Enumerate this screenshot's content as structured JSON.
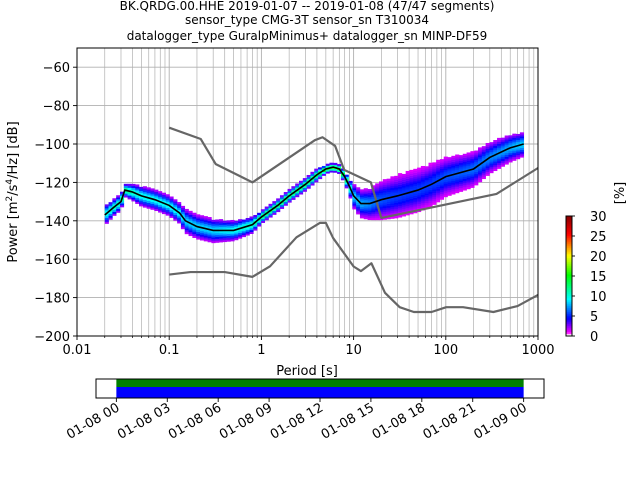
{
  "chart_data": {
    "type": "heatmap",
    "title_lines": [
      "BK.QRDG.00.HHE   2019-01-07 -- 2019-01-08  (47/47 segments)",
      "sensor_type CMG-3T sensor_sn T310034",
      "datalogger_type GuralpMinimus+ datalogger_sn MINP-DF59"
    ],
    "xlabel": "Period [s]",
    "ylabel_main": "Power [m",
    "ylabel_sup1": "2",
    "ylabel_mid": "/s",
    "ylabel_sup2": "4",
    "ylabel_end": "/Hz] [dB]",
    "x_scale": "log",
    "xlim": [
      0.01,
      1000
    ],
    "ylim": [
      -200,
      -50
    ],
    "x_ticks": [
      {
        "v": 0.01,
        "label": "0.01"
      },
      {
        "v": 0.1,
        "label": "0.1"
      },
      {
        "v": 1,
        "label": "1"
      },
      {
        "v": 10,
        "label": "10"
      },
      {
        "v": 100,
        "label": "100"
      },
      {
        "v": 1000,
        "label": "1000"
      }
    ],
    "y_ticks": [
      {
        "v": -60,
        "label": "−60"
      },
      {
        "v": -80,
        "label": "−80"
      },
      {
        "v": -100,
        "label": "−100"
      },
      {
        "v": -120,
        "label": "−120"
      },
      {
        "v": -140,
        "label": "−140"
      },
      {
        "v": -160,
        "label": "−160"
      },
      {
        "v": -180,
        "label": "−180"
      },
      {
        "v": -200,
        "label": "−200"
      }
    ],
    "grid": true,
    "colorbar": {
      "label": "[%]",
      "range": [
        0,
        30
      ],
      "ticks": [
        {
          "v": 0,
          "label": "0"
        },
        {
          "v": 5,
          "label": "5"
        },
        {
          "v": 10,
          "label": "10"
        },
        {
          "v": 15,
          "label": "15"
        },
        {
          "v": 20,
          "label": "20"
        },
        {
          "v": 25,
          "label": "25"
        },
        {
          "v": 30,
          "label": "30"
        }
      ]
    },
    "density": {
      "periods": [
        0.02,
        0.025,
        0.03,
        0.033,
        0.04,
        0.05,
        0.07,
        0.1,
        0.13,
        0.15,
        0.2,
        0.3,
        0.5,
        0.8,
        1,
        1.5,
        2,
        3,
        4,
        5,
        6,
        7,
        8,
        9,
        10,
        12,
        15,
        20,
        30,
        50,
        70,
        100,
        200,
        300,
        500,
        700
      ],
      "mode_db": [
        -137,
        -133,
        -130,
        -124,
        -125,
        -127,
        -129,
        -132,
        -136,
        -140,
        -143,
        -145,
        -145,
        -142,
        -138,
        -132,
        -127,
        -121,
        -116,
        -113,
        -112,
        -113,
        -117,
        -122,
        -127,
        -131,
        -131,
        -129,
        -127,
        -124,
        -121,
        -117,
        -113,
        -107,
        -102,
        -100
      ],
      "spread_db": [
        5,
        4,
        4,
        3,
        4,
        5,
        5,
        5,
        5,
        6,
        6,
        6,
        5,
        4,
        3,
        3,
        3,
        3,
        3,
        2,
        2,
        2,
        3,
        4,
        6,
        7,
        8,
        10,
        11,
        11,
        11,
        10,
        9,
        8,
        7,
        6
      ]
    },
    "mode_line": {
      "periods": [
        0.02,
        0.025,
        0.03,
        0.033,
        0.04,
        0.05,
        0.07,
        0.1,
        0.13,
        0.15,
        0.2,
        0.3,
        0.5,
        0.8,
        1,
        1.5,
        2,
        3,
        4,
        5,
        6,
        7,
        8,
        9,
        10,
        12,
        15,
        20,
        30,
        50,
        70,
        100,
        200,
        300,
        500,
        700
      ],
      "db": [
        -137,
        -133,
        -130,
        -124,
        -125,
        -127,
        -129,
        -132,
        -136,
        -140,
        -143,
        -145,
        -145,
        -142,
        -138,
        -132,
        -127,
        -121,
        -116,
        -113,
        -112,
        -113,
        -117,
        -122,
        -127,
        -131,
        -131,
        -129,
        -127,
        -124,
        -121,
        -117,
        -113,
        -107,
        -102,
        -100
      ]
    },
    "nhnm": {
      "periods": [
        0.1,
        0.22,
        0.32,
        0.8,
        3.8,
        4.6,
        6.3,
        7.9,
        15.4,
        20,
        354.8,
        1000
      ],
      "db": [
        -91.5,
        -97.4,
        -110.5,
        -120,
        -98,
        -96.5,
        -101,
        -113.5,
        -120,
        -138.5,
        -126,
        -112.5
      ]
    },
    "nlnm": {
      "periods": [
        0.1,
        0.17,
        0.4,
        0.8,
        1.24,
        2.4,
        4.3,
        5,
        6,
        10,
        12,
        15.6,
        21.9,
        31.6,
        45,
        70,
        101,
        154,
        328,
        600,
        1000
      ],
      "db": [
        -168,
        -166.7,
        -166.7,
        -169.2,
        -163.7,
        -148.6,
        -141.1,
        -141.1,
        -149,
        -163.8,
        -166.2,
        -162.1,
        -177.5,
        -185,
        -187.5,
        -187.5,
        -185,
        -185,
        -187.5,
        -184.4,
        -178.6
      ]
    },
    "time_axis": {
      "tick_labels": [
        "01-08 00",
        "01-08 03",
        "01-08 06",
        "01-08 09",
        "01-08 12",
        "01-08 15",
        "01-08 18",
        "01-08 21",
        "01-09 00"
      ],
      "coverage": [
        {
          "start_h": 0,
          "end_h": 24,
          "kind": "processed",
          "color": "#008000"
        },
        {
          "start_h": 0,
          "end_h": 24,
          "kind": "data",
          "color": "#0000ff"
        }
      ],
      "span_h": [
        -1.2,
        25.2
      ]
    }
  }
}
